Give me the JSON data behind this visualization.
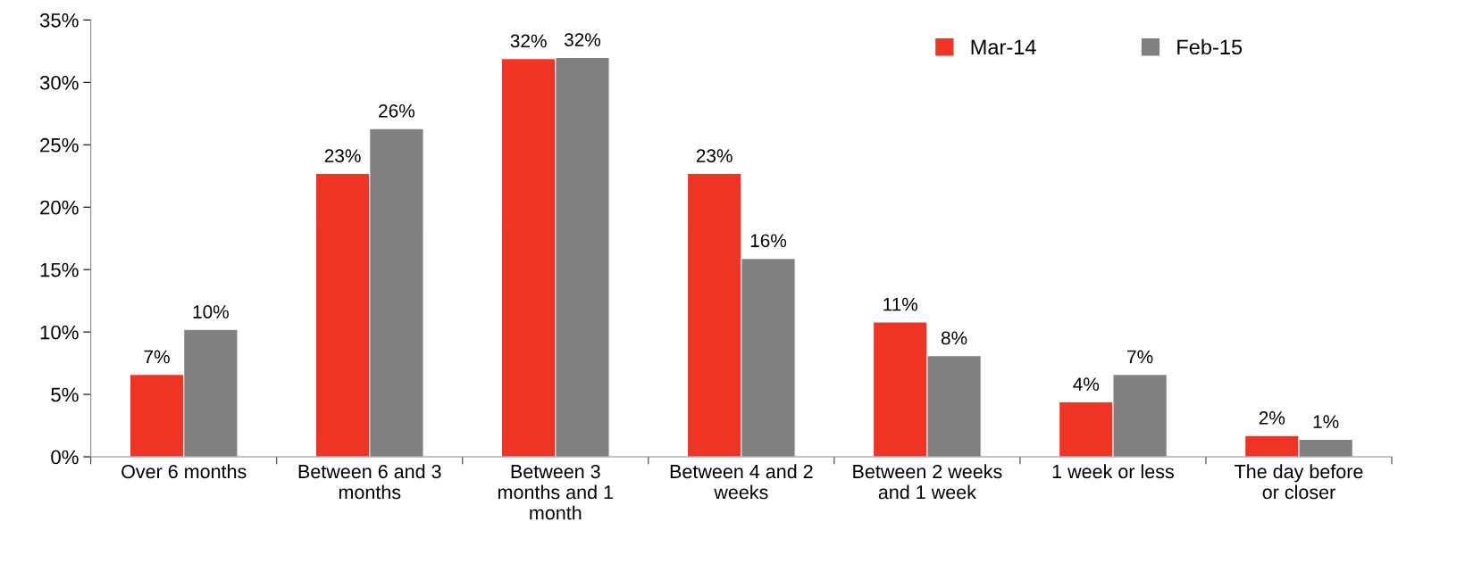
{
  "chart_data": {
    "type": "bar",
    "categories": [
      "Over 6 months",
      "Between 6 and 3 months",
      "Between 3 months and 1 month",
      "Between 4 and 2 weeks",
      "Between 2 weeks and 1 week",
      "1 week or less",
      "The day before or closer"
    ],
    "series": [
      {
        "name": "Mar-14",
        "color": "#ee3524",
        "values": [
          6.6,
          22.7,
          31.9,
          22.7,
          10.8,
          4.4,
          1.7
        ],
        "value_labels": [
          "7%",
          "23%",
          "32%",
          "23%",
          "11%",
          "4%",
          "2%"
        ]
      },
      {
        "name": "Feb-15",
        "color": "#808080",
        "values": [
          10.2,
          26.3,
          32.0,
          15.9,
          8.1,
          6.6,
          1.4
        ],
        "value_labels": [
          "10%",
          "26%",
          "32%",
          "16%",
          "8%",
          "7%",
          "1%"
        ]
      }
    ],
    "ylim": [
      0,
      35
    ],
    "yticks": [
      {
        "value": 0,
        "label": "0%"
      },
      {
        "value": 5,
        "label": "5%"
      },
      {
        "value": 10,
        "label": "10%"
      },
      {
        "value": 15,
        "label": "15%"
      },
      {
        "value": 20,
        "label": "20%"
      },
      {
        "value": 25,
        "label": "25%"
      },
      {
        "value": 30,
        "label": "30%"
      },
      {
        "value": 35,
        "label": "35%"
      }
    ],
    "grid": false,
    "legend": "top right"
  }
}
